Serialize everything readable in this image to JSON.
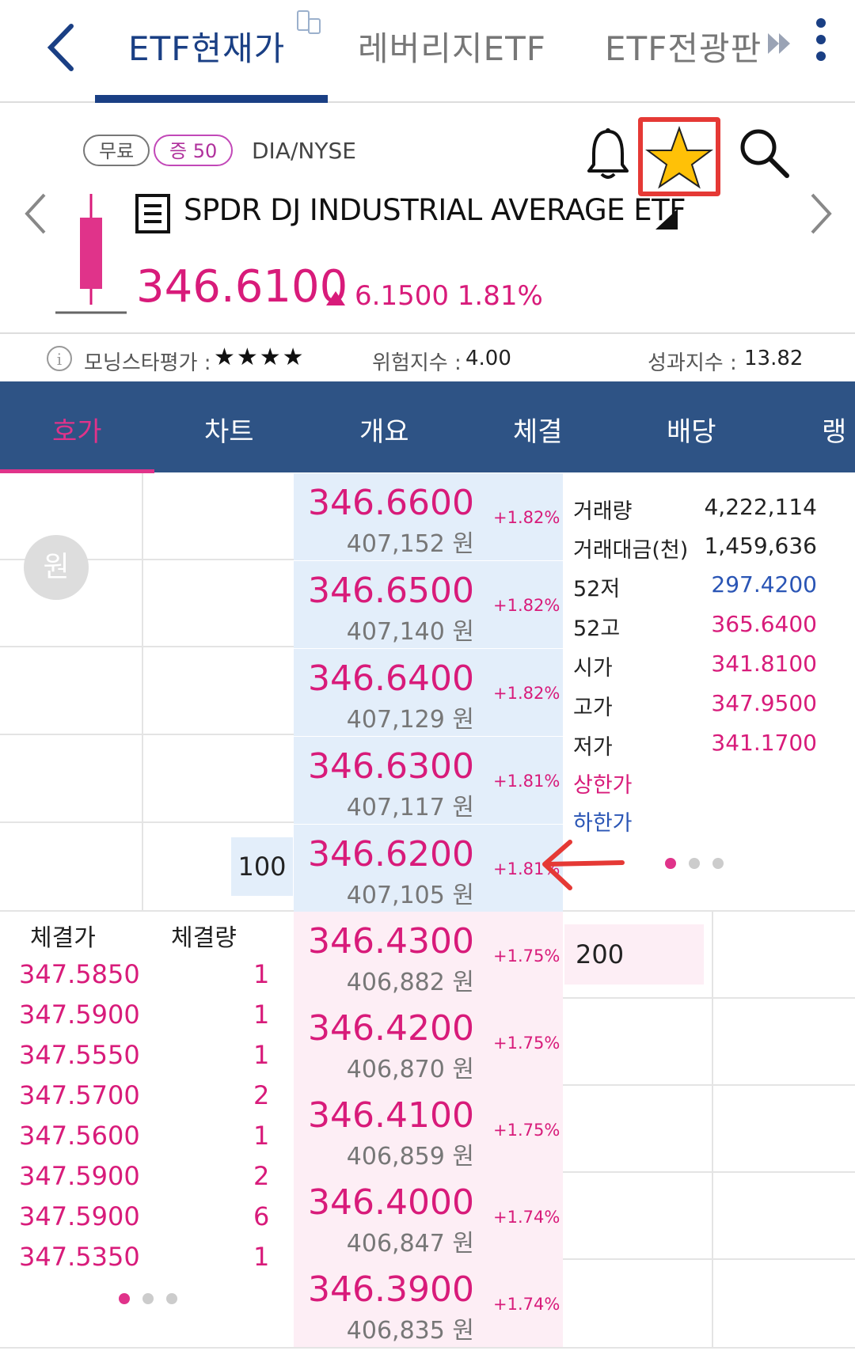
{
  "tabs": {
    "current": "ETF현재가",
    "leveraged": "레버리지ETF",
    "board": "ETF전광판"
  },
  "badges": {
    "free": "무료",
    "margin": "증 50"
  },
  "ticker": "DIA/NYSE",
  "product_name": "SPDR DJ INDUSTRIAL AVERAGE ETF",
  "price": "346.6100",
  "change": "6.1500",
  "change_pct": "1.81%",
  "info": {
    "morningstar_label": "모닝스타평가 :",
    "morningstar_stars": "★★★★",
    "risk_label": "위험지수 :",
    "risk_value": "4.00",
    "perf_label": "성과지수 :",
    "perf_value": "13.82"
  },
  "nav_tabs": [
    "호가",
    "차트",
    "개요",
    "체결",
    "배당",
    "랭"
  ],
  "currency_button": "원",
  "asks": [
    {
      "price": "346.6600",
      "pct": "+1.82%",
      "won": "407,152 원"
    },
    {
      "price": "346.6500",
      "pct": "+1.82%",
      "won": "407,140 원"
    },
    {
      "price": "346.6400",
      "pct": "+1.82%",
      "won": "407,129 원"
    },
    {
      "price": "346.6300",
      "pct": "+1.81%",
      "won": "407,117 원"
    },
    {
      "price": "346.6200",
      "pct": "+1.81%",
      "won": "407,105 원"
    }
  ],
  "ask_qty": "100",
  "bids": [
    {
      "price": "346.4300",
      "pct": "+1.75%",
      "won": "406,882 원"
    },
    {
      "price": "346.4200",
      "pct": "+1.75%",
      "won": "406,870 원"
    },
    {
      "price": "346.4100",
      "pct": "+1.75%",
      "won": "406,859 원"
    },
    {
      "price": "346.4000",
      "pct": "+1.74%",
      "won": "406,847 원"
    },
    {
      "price": "346.3900",
      "pct": "+1.74%",
      "won": "406,835 원"
    }
  ],
  "bid_qty": "200",
  "stats": [
    {
      "label": "거래량",
      "value": "4,222,114",
      "color": "#222222"
    },
    {
      "label": "거래대금(천)",
      "value": "1,459,636",
      "color": "#222222"
    },
    {
      "label": "52저",
      "value": "297.4200",
      "color": "#2a55b5"
    },
    {
      "label": "52고",
      "value": "365.6400",
      "color": "#d81b7a"
    },
    {
      "label": "시가",
      "value": "341.8100",
      "color": "#d81b7a"
    },
    {
      "label": "고가",
      "value": "347.9500",
      "color": "#d81b7a"
    },
    {
      "label": "저가",
      "value": "341.1700",
      "color": "#d81b7a"
    },
    {
      "label": "상한가",
      "value": "",
      "color": "#d81b7a"
    },
    {
      "label": "하한가",
      "value": "",
      "color": "#2a55b5"
    }
  ],
  "trades_header": {
    "price": "체결가",
    "qty": "체결량"
  },
  "trades": [
    {
      "price": "347.5850",
      "qty": "1"
    },
    {
      "price": "347.5900",
      "qty": "1"
    },
    {
      "price": "347.5550",
      "qty": "1"
    },
    {
      "price": "347.5700",
      "qty": "2"
    },
    {
      "price": "347.5600",
      "qty": "1"
    },
    {
      "price": "347.5900",
      "qty": "2"
    },
    {
      "price": "347.5900",
      "qty": "6"
    },
    {
      "price": "347.5350",
      "qty": "1"
    }
  ],
  "colors": {
    "brand": "#1a3f84",
    "nav": "#2e5385",
    "up": "#d81b7a",
    "down": "#2a55b5",
    "highlight": "#e53935"
  }
}
